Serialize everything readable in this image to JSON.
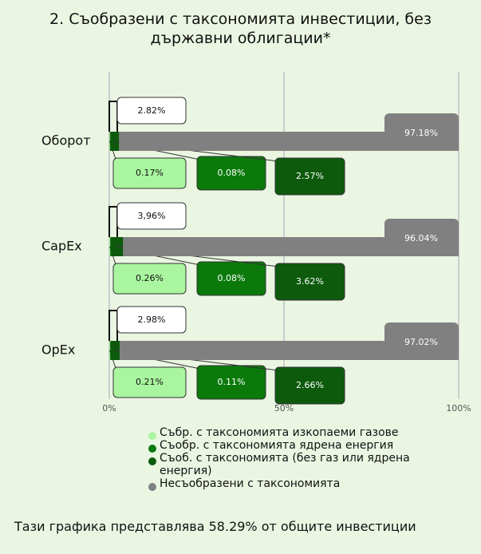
{
  "chart_data": {
    "type": "stacked_bar_horizontal",
    "title": "2. Съобразени с таксономията инвестиции, без държавни облигации*",
    "categories": [
      "Оборот",
      "CapEx",
      "OpEx"
    ],
    "series": [
      {
        "name": "Събр. с таксономията изкопаеми газове",
        "color": "#aaf5a0",
        "values": [
          0.17,
          0.26,
          0.21
        ],
        "value_labels": [
          "0.17%",
          "0.26%",
          "0.21%"
        ]
      },
      {
        "name": "Съобр. с таксономията ядрена енергия",
        "color": "#0b7a0b",
        "values": [
          0.08,
          0.08,
          0.11
        ],
        "value_labels": [
          "0.08%",
          "0.08%",
          "0.11%"
        ]
      },
      {
        "name": "Съоб. с таксономията (без газ или ядрена енергия)",
        "color": "#0d5a0d",
        "values": [
          2.57,
          3.62,
          2.66
        ],
        "value_labels": [
          "2.57%",
          "3.62%",
          "2.66%"
        ]
      },
      {
        "name": "Несъобразени с таксономията",
        "color": "#808080",
        "values": [
          97.18,
          96.04,
          97.02
        ],
        "value_labels": [
          "97.18%",
          "96.04%",
          "97.02%"
        ]
      }
    ],
    "aligned_totals": {
      "values": [
        2.82,
        3.96,
        2.98
      ],
      "value_labels": [
        "2.82%",
        "3,96%",
        "2.98%"
      ]
    },
    "xlim": [
      0,
      100
    ],
    "xticks": [
      {
        "value": 0,
        "label": "0%"
      },
      {
        "value": 50,
        "label": "50%"
      },
      {
        "value": 100,
        "label": "100%"
      }
    ],
    "grid": true,
    "footnote": "Тази графика представлява 58.29% от общите инвестиции"
  }
}
